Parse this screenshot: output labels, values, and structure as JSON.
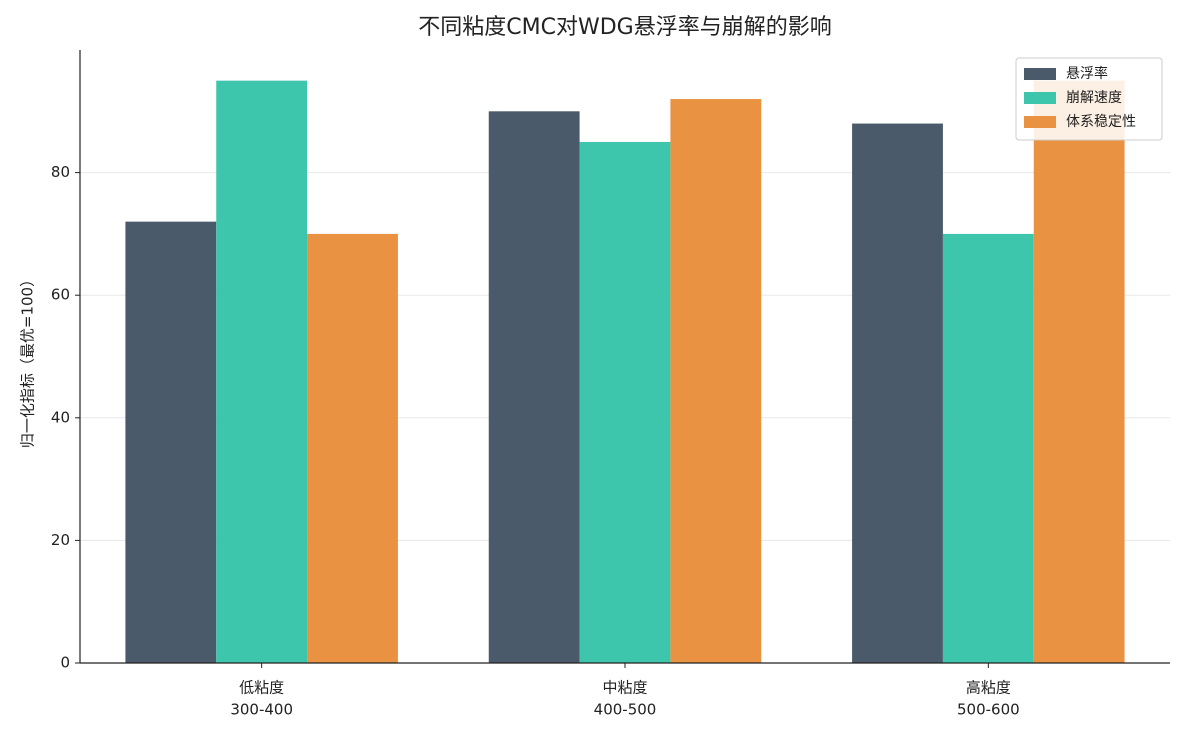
{
  "chart_data": {
    "type": "bar",
    "title": "不同粘度CMC对WDG悬浮率与崩解的影响",
    "y_label": "归一化指标（最优=100）",
    "categories": [
      [
        "低粘度",
        "300-400"
      ],
      [
        "中粘度",
        "400-500"
      ],
      [
        "高粘度",
        "500-600"
      ]
    ],
    "series": [
      {
        "name": "悬浮率",
        "color": "#4a5a6a",
        "values": [
          72,
          90,
          88
        ]
      },
      {
        "name": "崩解速度",
        "color": "#3ec6ad",
        "values": [
          95,
          85,
          70
        ]
      },
      {
        "name": "体系稳定性",
        "color": "#e89242",
        "values": [
          70,
          92,
          95
        ]
      }
    ],
    "ylim": [
      0,
      100
    ],
    "yticks": [
      0,
      20,
      40,
      60,
      80
    ],
    "grid": true,
    "legend": "upper right"
  }
}
